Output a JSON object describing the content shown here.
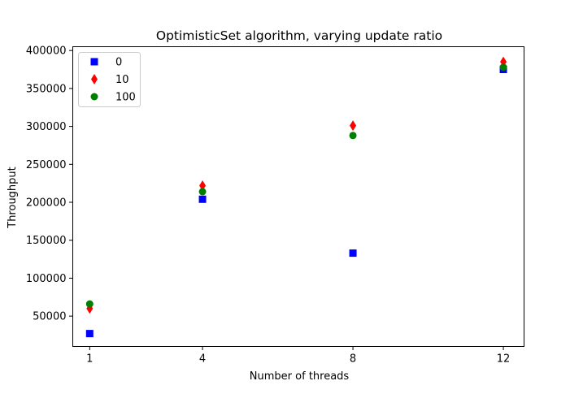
{
  "chart_data": {
    "type": "scatter",
    "title": "OptimisticSet algorithm, varying update ratio",
    "xlabel": "Number of threads",
    "ylabel": "Throughput",
    "x_ticks": [
      1,
      4,
      8,
      12
    ],
    "y_ticks": [
      50000,
      100000,
      150000,
      200000,
      250000,
      300000,
      350000,
      400000
    ],
    "xlim": [
      0.55,
      12.55
    ],
    "ylim": [
      10000,
      405000
    ],
    "grid": false,
    "legend_placement": "top-left",
    "series": [
      {
        "name": "0",
        "marker": "square",
        "color": "#0000ff",
        "x": [
          1,
          4,
          8,
          12
        ],
        "values": [
          27000,
          204000,
          133000,
          375000
        ]
      },
      {
        "name": "10",
        "marker": "diamond",
        "color": "#ff0000",
        "x": [
          1,
          4,
          8,
          12
        ],
        "values": [
          60000,
          222000,
          301000,
          385000
        ]
      },
      {
        "name": "100",
        "marker": "circle",
        "color": "#008000",
        "x": [
          1,
          4,
          8,
          12
        ],
        "values": [
          66000,
          214000,
          288000,
          378000
        ]
      }
    ]
  }
}
